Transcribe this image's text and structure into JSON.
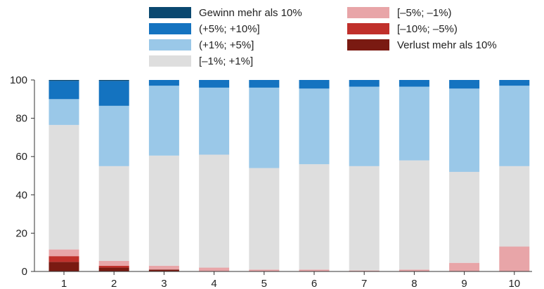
{
  "chart_data": {
    "type": "bar",
    "stacked": true,
    "categories": [
      "1",
      "2",
      "3",
      "4",
      "5",
      "6",
      "7",
      "8",
      "9",
      "10"
    ],
    "ylim": [
      0,
      100
    ],
    "yticks": [
      0,
      20,
      40,
      60,
      80,
      100
    ],
    "grid": false,
    "legend_position": "top",
    "series": [
      {
        "name": "Verlust mehr als 10%",
        "color": "#7a1a12",
        "values": [
          5,
          2,
          1,
          0,
          0,
          0,
          0,
          0,
          0,
          0
        ]
      },
      {
        "name": "[–10%; –5%)",
        "color": "#c0302b",
        "values": [
          3,
          1,
          0,
          0,
          0,
          0,
          0,
          0,
          0,
          0
        ]
      },
      {
        "name": "[–5%; –1%)",
        "color": "#e8a5a8",
        "values": [
          3.5,
          2.5,
          2,
          2,
          1,
          1,
          0.5,
          1,
          4.5,
          13
        ]
      },
      {
        "name": "[–1%; +1%]",
        "color": "#dedede",
        "values": [
          65,
          49.5,
          57.5,
          59,
          53,
          55,
          54.5,
          57,
          47.5,
          42
        ]
      },
      {
        "name": "(+1%; +5%]",
        "color": "#9ac8e8",
        "values": [
          13.5,
          31.5,
          36.5,
          35,
          42,
          39.5,
          41.5,
          38.5,
          43.5,
          42
        ]
      },
      {
        "name": "(+5%; +10%]",
        "color": "#1473c0",
        "values": [
          9.5,
          13,
          3,
          4,
          4,
          4.5,
          3.5,
          3.5,
          4.5,
          3
        ]
      },
      {
        "name": "Gewinn mehr als 10%",
        "color": "#0a4870",
        "values": [
          0.5,
          0.5,
          0,
          0,
          0,
          0,
          0,
          0,
          0,
          0
        ]
      }
    ]
  }
}
